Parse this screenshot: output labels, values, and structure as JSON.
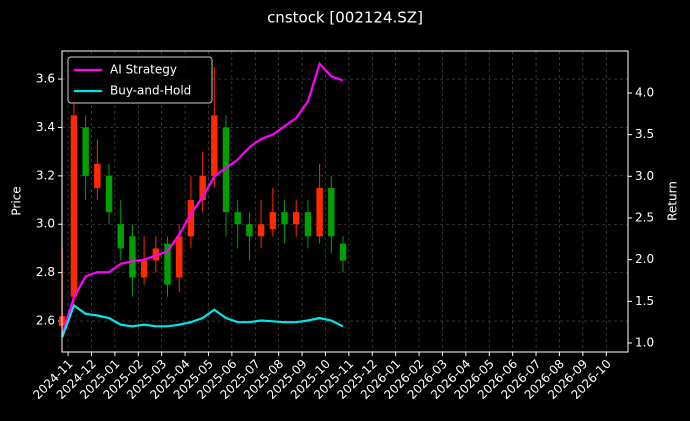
{
  "chart_data": {
    "type": "candlestick",
    "title": "cnstock [002124.SZ]",
    "y_label": "Price",
    "y2_label": "Return",
    "up_color": "#ff2a00",
    "down_color": "#00a000",
    "grid": true,
    "legend": "upper left",
    "x": [
      -0.25,
      0.25,
      0.75,
      1.25,
      1.75,
      2.25,
      2.75,
      3.25,
      3.75,
      4.25,
      4.75,
      5.25,
      5.75,
      6.25,
      6.75,
      7.25,
      7.75,
      8.25,
      8.75,
      9.25,
      9.75,
      10.25,
      10.75,
      11.25,
      11.75
    ],
    "open": [
      2.58,
      2.7,
      3.4,
      3.15,
      3.2,
      3.0,
      2.95,
      2.78,
      2.85,
      2.92,
      2.78,
      2.95,
      3.1,
      3.2,
      3.4,
      3.05,
      3.0,
      2.95,
      2.98,
      3.05,
      3.0,
      3.05,
      2.95,
      3.15,
      2.92
    ],
    "high": [
      2.9,
      3.55,
      3.45,
      3.35,
      3.25,
      3.1,
      3.0,
      2.95,
      2.95,
      2.95,
      3.0,
      3.2,
      3.3,
      3.65,
      3.45,
      3.1,
      3.05,
      3.1,
      3.15,
      3.1,
      3.1,
      3.1,
      3.25,
      3.2,
      2.95
    ],
    "low": [
      2.55,
      2.65,
      3.1,
      3.1,
      3.0,
      2.85,
      2.7,
      2.75,
      2.8,
      2.7,
      2.72,
      2.9,
      3.05,
      3.15,
      2.95,
      2.9,
      2.85,
      2.9,
      2.95,
      2.92,
      2.95,
      2.9,
      2.92,
      2.88,
      2.8
    ],
    "close": [
      2.62,
      3.45,
      3.2,
      3.25,
      3.05,
      2.9,
      2.78,
      2.85,
      2.9,
      2.75,
      2.95,
      3.1,
      3.2,
      3.45,
      3.05,
      3.0,
      2.95,
      3.0,
      3.05,
      3.0,
      3.05,
      2.95,
      3.15,
      2.95,
      2.85
    ],
    "series": [
      {
        "name": "AI Strategy",
        "color": "#ff00ff",
        "axis": "y2",
        "values": [
          1.1,
          1.55,
          1.8,
          1.85,
          1.85,
          1.95,
          1.98,
          2.0,
          2.05,
          2.1,
          2.3,
          2.55,
          2.75,
          3.0,
          3.1,
          3.2,
          3.35,
          3.45,
          3.5,
          3.6,
          3.7,
          3.9,
          4.35,
          4.2,
          4.15
        ]
      },
      {
        "name": "Buy-and-Hold",
        "color": "#00e5ee",
        "axis": "y2",
        "values": [
          1.07,
          1.45,
          1.35,
          1.33,
          1.3,
          1.22,
          1.2,
          1.22,
          1.2,
          1.2,
          1.22,
          1.25,
          1.3,
          1.4,
          1.3,
          1.25,
          1.25,
          1.27,
          1.26,
          1.25,
          1.25,
          1.27,
          1.3,
          1.27,
          1.2
        ]
      }
    ],
    "xlim": [
      -0.26,
      23.93
    ],
    "xticks": [
      {
        "value": 0,
        "label": "2024-11"
      },
      {
        "value": 1,
        "label": "2024-12"
      },
      {
        "value": 2,
        "label": "2025-01"
      },
      {
        "value": 3,
        "label": "2025-02"
      },
      {
        "value": 4,
        "label": "2025-03"
      },
      {
        "value": 5,
        "label": "2025-04"
      },
      {
        "value": 6,
        "label": "2025-05"
      },
      {
        "value": 7,
        "label": "2025-06"
      },
      {
        "value": 8,
        "label": "2025-07"
      },
      {
        "value": 9,
        "label": "2025-08"
      },
      {
        "value": 10,
        "label": "2025-09"
      },
      {
        "value": 11,
        "label": "2025-10"
      },
      {
        "value": 12,
        "label": "2025-11"
      },
      {
        "value": 13,
        "label": "2025-12"
      },
      {
        "value": 14,
        "label": "2026-01"
      },
      {
        "value": 15,
        "label": "2026-02"
      },
      {
        "value": 16,
        "label": "2026-03"
      },
      {
        "value": 17,
        "label": "2026-04"
      },
      {
        "value": 18,
        "label": "2026-05"
      },
      {
        "value": 19,
        "label": "2026-06"
      },
      {
        "value": 20,
        "label": "2026-07"
      },
      {
        "value": 21,
        "label": "2026-08"
      },
      {
        "value": 22,
        "label": "2026-09"
      },
      {
        "value": 23,
        "label": "2026-10"
      }
    ],
    "ylim": [
      2.472,
      3.716
    ],
    "yticks": [
      2.6,
      2.8,
      {
        "value": 3.0,
        "label": "3.0"
      },
      3.2,
      3.4,
      3.6
    ],
    "y2lim": [
      0.892,
      4.504
    ],
    "y2ticks": [
      {
        "value": 1.0,
        "label": "1.0"
      },
      1.5,
      {
        "value": 2.0,
        "label": "2.0"
      },
      2.5,
      {
        "value": 3.0,
        "label": "3.0"
      },
      3.5,
      {
        "value": 4.0,
        "label": "4.0"
      }
    ]
  }
}
